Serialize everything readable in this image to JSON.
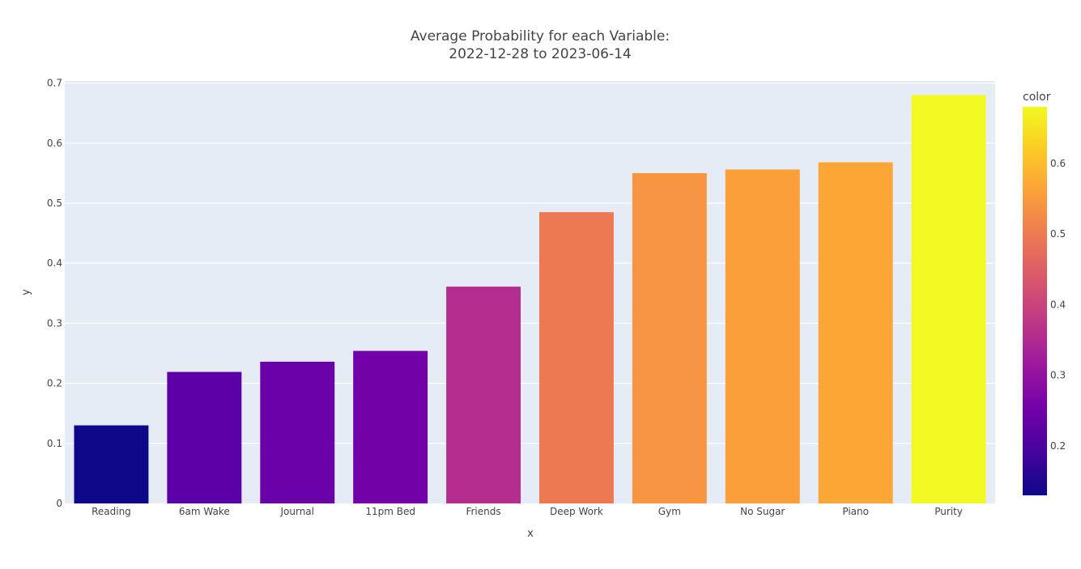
{
  "chart_data": {
    "type": "bar",
    "title_line1": "Average Probability for each Variable:",
    "title_line2": "2022-12-28 to 2023-06-14",
    "xlabel": "x",
    "ylabel": "y",
    "categories": [
      "Reading",
      "6am Wake",
      "Journal",
      "11pm Bed",
      "Friends",
      "Deep Work",
      "Gym",
      "No Sugar",
      "Piano",
      "Purity"
    ],
    "values": [
      0.13,
      0.219,
      0.236,
      0.254,
      0.361,
      0.485,
      0.55,
      0.556,
      0.568,
      0.68
    ],
    "colors": [
      "#0d0887",
      "#5c01a6",
      "#6a00a8",
      "#7201a8",
      "#b32c8e",
      "#ed7953",
      "#f89540",
      "#fb9f3a",
      "#fca636",
      "#f0f921"
    ],
    "ylim": [
      0,
      0.7
    ],
    "yticks": [
      0,
      0.1,
      0.2,
      0.3,
      0.4,
      0.5,
      0.6,
      0.7
    ],
    "ytick_labels": [
      "0",
      "0.1",
      "0.2",
      "0.3",
      "0.4",
      "0.5",
      "0.6",
      "0.7"
    ],
    "grid": true,
    "plot_background": "#e5ecf6",
    "colorbar": {
      "title": "color",
      "range": [
        0.13,
        0.68
      ],
      "ticks": [
        0.2,
        0.3,
        0.4,
        0.5,
        0.6
      ],
      "tick_labels": [
        "0.2",
        "0.3",
        "0.4",
        "0.5",
        "0.6"
      ],
      "colorscale": [
        "#0d0887",
        "#46039f",
        "#7201a8",
        "#9c179e",
        "#bd3786",
        "#d8576b",
        "#ed7953",
        "#fb9f3a",
        "#fdca26",
        "#f0f921"
      ]
    }
  }
}
